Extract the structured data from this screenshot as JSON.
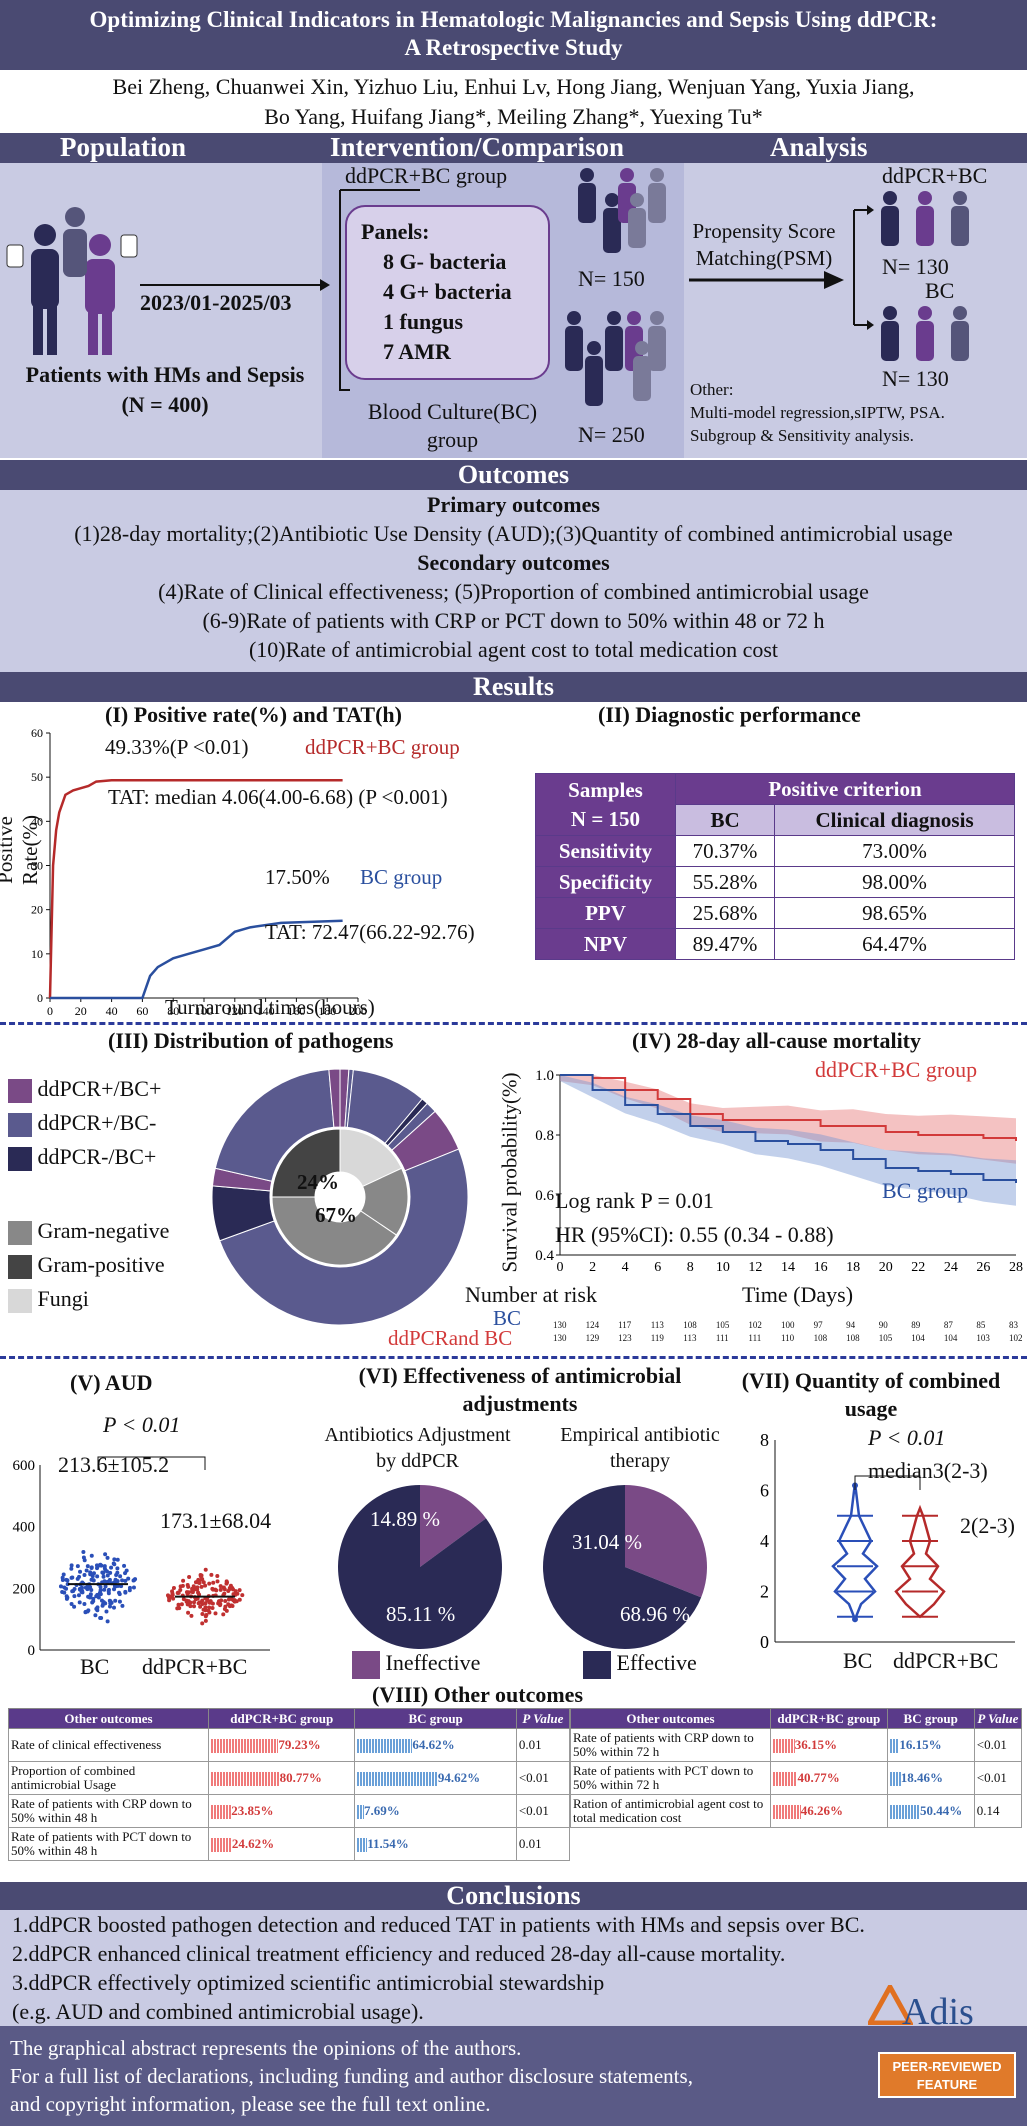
{
  "header": {
    "title_line1": "Optimizing Clinical Indicators in Hematologic Malignancies and Sepsis Using ddPCR:",
    "title_line2": "A Retrospective Study",
    "authors_line1": "Bei Zheng, Chuanwei Xin, Yizhuo Liu, Enhui Lv, Hong Jiang, Wenjuan Yang, Yuxia Jiang,",
    "authors_line2": "Bo Yang, Huifang Jiang*, Meiling Zhang*, Yuexing Tu*"
  },
  "pico": {
    "population": "Population",
    "intervention": "Intervention/Comparison",
    "analysis": "Analysis",
    "date_range": "2023/01-2025/03",
    "patients": "Patients with HMs and Sepsis",
    "patients_n": "(N = 400)",
    "ddpcr_group": "ddPCR+BC group",
    "panels_title": "Panels:",
    "panels": [
      "8 G- bacteria",
      "4 G+ bacteria",
      "1 fungus",
      "7 AMR"
    ],
    "n150": "N= 150",
    "bc_group_l1": "Blood Culture(BC)",
    "bc_group_l2": "group",
    "n250": "N= 250",
    "psm_l1": "Propensity Score",
    "psm_l2": "Matching(PSM)",
    "ddpcr_bc": "ddPCR+BC",
    "n130a": "N= 130",
    "bc": "BC",
    "n130b": "N= 130",
    "other_l1": "Other:",
    "other_l2": "Multi-model regression,sIPTW, PSA.",
    "other_l3": "Subgroup & Sensitivity analysis."
  },
  "outcomes": {
    "title": "Outcomes",
    "primary_title": "Primary outcomes",
    "primary": "(1)28-day mortality;(2)Antibiotic Use Density (AUD);(3)Quantity of combined antimicrobial usage",
    "secondary_title": "Secondary outcomes",
    "secondary": [
      "(4)Rate of Clinical effectiveness; (5)Proportion of combined antimicrobial usage",
      "(6-9)Rate of patients with CRP  or PCT down to 50% within 48 or 72 h",
      "(10)Rate of antimicrobial agent cost to total medication cost"
    ]
  },
  "results_title": "Results",
  "panel1": {
    "title": "(I) Positive rate(%) and TAT(h)",
    "ddpcr_label": "49.33%(P <0.01)",
    "ddpcr_group": "ddPCR+BC group",
    "tat1": "TAT: median 4.06(4.00-6.68) (P <0.001)",
    "bc_rate": "17.50%",
    "bc_group": "BC group",
    "tat2": "TAT: 72.47(66.22-92.76)",
    "ylabel": "Positive Rate(%)",
    "xlabel": "Turnaround times(hours)",
    "color_red": "#b52a2a",
    "color_blue": "#2a4f9e"
  },
  "panel2": {
    "title": "(II) Diagnostic performance",
    "samples": "Samples",
    "n": "N = 150",
    "positive_criterion": "Positive criterion",
    "col_bc": "BC",
    "col_cd": "Clinical diagnosis",
    "rows": [
      {
        "k": "Sensitivity",
        "bc": "70.37%",
        "cd": "73.00%"
      },
      {
        "k": "Specificity",
        "bc": "55.28%",
        "cd": "98.00%"
      },
      {
        "k": "PPV",
        "bc": "25.68%",
        "cd": "98.65%"
      },
      {
        "k": "NPV",
        "bc": "89.47%",
        "cd": "64.47%"
      }
    ]
  },
  "panel3": {
    "title": "(III) Distribution of pathogens",
    "legend": [
      "ddPCR+/BC+",
      "ddPCR+/BC-",
      "ddPCR-/BC+",
      "Gram-negative",
      "Gram-positive",
      "Fungi"
    ],
    "inner_24": "24%",
    "inner_67": "67%"
  },
  "panel4": {
    "title": "(IV) 28-day all-cause mortality",
    "ylabel": "Survival probability(%)",
    "xlabel": "Time (Days)",
    "ddpcr": "ddPCR+BC group",
    "bc": "BC group",
    "logrank": "Log rank P = 0.01",
    "hr": "HR (95%CI): 0.55 (0.34 - 0.88)",
    "risk_title": "Number at risk",
    "risk_bc_label": "BC",
    "risk_dd_label": "ddPCRand BC",
    "risk_bc": [
      "130",
      "124",
      "117",
      "113",
      "108",
      "105",
      "102",
      "100",
      "97",
      "94",
      "90",
      "89",
      "87",
      "85",
      "83"
    ],
    "risk_dd": [
      "130",
      "129",
      "123",
      "119",
      "113",
      "111",
      "111",
      "110",
      "108",
      "108",
      "105",
      "104",
      "104",
      "103",
      "102"
    ]
  },
  "panel5": {
    "title": "(V) AUD",
    "p": "P < 0.01",
    "bc_val": "213.6±105.2",
    "dd_val": "173.1±68.04",
    "x1": "BC",
    "x2": "ddPCR+BC"
  },
  "panel6": {
    "title_l1": "(VI) Effectiveness of antimicrobial",
    "title_l2": "adjustments",
    "pie1_l1": "Antibiotics Adjustment",
    "pie1_l2": "by ddPCR",
    "pie2_l1": "Empirical antibiotic",
    "pie2_l2": "therapy",
    "p1a": "14.89 %",
    "p1b": "85.11 %",
    "p2a": "31.04 %",
    "p2b": "68.96 %",
    "leg1": "Ineffective",
    "leg2": "Effective"
  },
  "panel7": {
    "title_l1": "(VII) Quantity of combined",
    "title_l2": "usage",
    "p": "P < 0.01",
    "m1": "median3(2-3)",
    "m2": "2(2-3)",
    "x1": "BC",
    "x2": "ddPCR+BC"
  },
  "panel8": {
    "title": "(VIII) Other outcomes",
    "h_other": "Other outcomes",
    "h_dd": "ddPCR+BC group",
    "h_bc": "BC group",
    "h_p": "P Value",
    "left": [
      {
        "k": "Rate of clinical effectiveness",
        "dd": "79.23%",
        "ddv": 79.23,
        "bc": "64.62%",
        "bcv": 64.62,
        "p": "0.01"
      },
      {
        "k": "Proportion of combined antimicrobial Usage",
        "dd": "80.77%",
        "ddv": 80.77,
        "bc": "94.62%",
        "bcv": 94.62,
        "p": "<0.01"
      },
      {
        "k": "Rate of patients with CRP down to 50% within 48 h",
        "dd": "23.85%",
        "ddv": 23.85,
        "bc": "7.69%",
        "bcv": 7.69,
        "p": "<0.01"
      },
      {
        "k": "Rate of patients with PCT down to 50% within 48 h",
        "dd": "24.62%",
        "ddv": 24.62,
        "bc": "11.54%",
        "bcv": 11.54,
        "p": "0.01"
      }
    ],
    "right": [
      {
        "k": "Rate of patients with CRP down to 50% within 72 h",
        "dd": "36.15%",
        "ddv": 36.15,
        "bc": "16.15%",
        "bcv": 16.15,
        "p": "<0.01"
      },
      {
        "k": "Rate of patients with PCT down to 50% within 72 h",
        "dd": "40.77%",
        "ddv": 40.77,
        "bc": "18.46%",
        "bcv": 18.46,
        "p": "<0.01"
      },
      {
        "k": "Ration of antimicrobial agent cost to total medication cost",
        "dd": "46.26%",
        "ddv": 46.26,
        "bc": "50.44%",
        "bcv": 50.44,
        "p": "0.14"
      }
    ]
  },
  "conclusions": {
    "title": "Conclusions",
    "c1": "1.ddPCR boosted pathogen detection and reduced TAT in patients with HMs and sepsis over BC.",
    "c2": "2.ddPCR enhanced clinical treatment efficiency and reduced 28-day all-cause mortality.",
    "c3a": "3.ddPCR effectively optimized scientific antimicrobial stewardship",
    "c3b": "(e.g. AUD and combined antimicrobial usage).",
    "logo": "Adis"
  },
  "footer": {
    "l1": "The graphical abstract represents the opinions of the authors.",
    "l2": "For a full list of declarations, including funding and author disclosure statements,",
    "l3": "and copyright information, please see the full text online.",
    "badge1": "PEER-REVIEWED",
    "badge2": "FEATURE"
  },
  "chart_data": [
    {
      "type": "line",
      "title": "(I) Positive rate(%) and TAT(h)",
      "xlabel": "Turnaround times(hours)",
      "ylabel": "Positive Rate(%)",
      "xlim": [
        0,
        200
      ],
      "ylim": [
        0,
        60
      ],
      "series": [
        {
          "name": "ddPCR+BC group",
          "x": [
            0,
            2,
            4,
            6,
            8,
            10,
            15,
            20,
            25,
            30,
            40,
            60,
            80,
            100,
            150,
            190
          ],
          "y": [
            0,
            30,
            38,
            42,
            44,
            46,
            47,
            47.5,
            48,
            49,
            49.3,
            49.3,
            49.3,
            49.3,
            49.3,
            49.3
          ]
        },
        {
          "name": "BC group",
          "x": [
            0,
            60,
            62,
            65,
            70,
            75,
            80,
            90,
            100,
            110,
            120,
            130,
            150,
            190
          ],
          "y": [
            0,
            0,
            2,
            5,
            7,
            8,
            9,
            10,
            11,
            12,
            15,
            16,
            17,
            17.5
          ]
        }
      ]
    },
    {
      "type": "line",
      "title": "(IV) 28-day all-cause mortality",
      "xlabel": "Time (Days)",
      "ylabel": "Survival probability(%)",
      "xlim": [
        0,
        28
      ],
      "ylim": [
        0.4,
        1.0
      ],
      "series": [
        {
          "name": "ddPCR+BC group",
          "x": [
            0,
            2,
            4,
            6,
            8,
            10,
            12,
            14,
            16,
            18,
            20,
            22,
            24,
            26,
            28
          ],
          "y": [
            1.0,
            0.99,
            0.95,
            0.92,
            0.87,
            0.85,
            0.85,
            0.85,
            0.83,
            0.83,
            0.81,
            0.8,
            0.8,
            0.79,
            0.78
          ]
        },
        {
          "name": "BC group",
          "x": [
            0,
            2,
            4,
            6,
            8,
            10,
            12,
            14,
            16,
            18,
            20,
            22,
            24,
            26,
            28
          ],
          "y": [
            1.0,
            0.95,
            0.9,
            0.87,
            0.83,
            0.81,
            0.78,
            0.77,
            0.75,
            0.72,
            0.69,
            0.68,
            0.67,
            0.65,
            0.64
          ]
        }
      ]
    },
    {
      "type": "pie",
      "title": "(VI) Antibiotics Adjustment by ddPCR",
      "labels": [
        "Ineffective",
        "Effective"
      ],
      "values": [
        14.89,
        85.11
      ]
    },
    {
      "type": "pie",
      "title": "(VI) Empirical antibiotic therapy",
      "labels": [
        "Ineffective",
        "Effective"
      ],
      "values": [
        31.04,
        68.96
      ]
    },
    {
      "type": "scatter",
      "title": "(V) AUD",
      "categories": [
        "BC",
        "ddPCR+BC"
      ],
      "values": [
        213.6,
        173.1
      ],
      "ylim": [
        0,
        600
      ]
    }
  ]
}
